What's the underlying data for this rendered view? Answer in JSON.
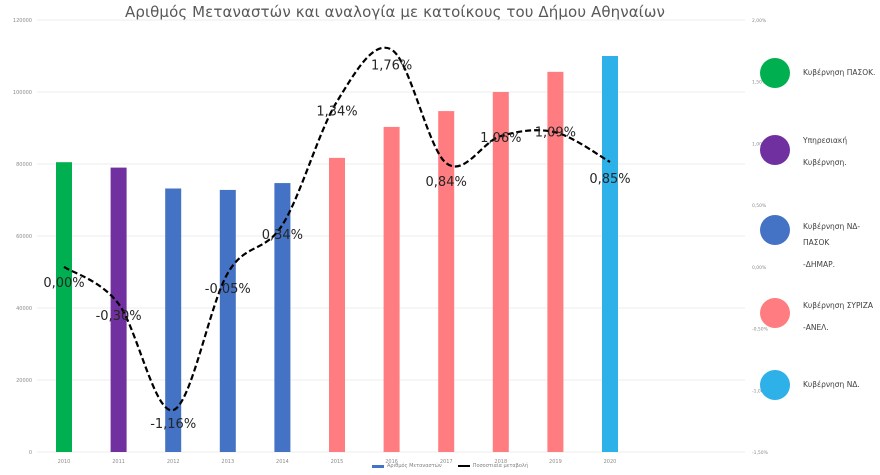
{
  "chart_data": {
    "type": "bar",
    "title": "Αριθμός Μεταναστών και αναλογία με κατοίκους του Δήμου Αθηναίων",
    "categories": [
      "2010",
      "2011",
      "2012",
      "2013",
      "2014",
      "2015",
      "2016",
      "2017",
      "2018",
      "2019",
      "2020"
    ],
    "series": [
      {
        "name": "Αριθμός Μεταναστών",
        "type": "bar",
        "axis": "left",
        "values": [
          80500,
          79000,
          73200,
          72800,
          74700,
          81700,
          90300,
          94700,
          100000,
          105600,
          110000
        ],
        "colors": [
          "#00b050",
          "#7030a0",
          "#4472c4",
          "#4472c4",
          "#4472c4",
          "#ff7c80",
          "#ff7c80",
          "#ff7c80",
          "#ff7c80",
          "#ff7c80",
          "#2eb0e8"
        ]
      },
      {
        "name": "Ποσοστιαία μεταβολή",
        "type": "line",
        "style": "dashed-smooth",
        "axis": "right",
        "values": [
          0.0,
          -0.3,
          -1.16,
          -0.05,
          0.34,
          1.34,
          1.76,
          0.84,
          1.06,
          1.09,
          0.85
        ],
        "labels": [
          "0,00%",
          "-0,30%",
          "-1,16%",
          "-0,05%",
          "0,34%",
          "1,34%",
          "1,76%",
          "0,84%",
          "1,06%",
          "1,09%",
          "0,85%"
        ]
      }
    ],
    "left_axis": {
      "ylim": [
        0,
        120000
      ],
      "ticks": [
        "0",
        "20000",
        "40000",
        "60000",
        "80000",
        "100000",
        "120000"
      ]
    },
    "right_axis": {
      "ylim": [
        -1.5,
        2.0
      ],
      "ticks": [
        "-1,50%",
        "-1,00%",
        "-0,50%",
        "0,00%",
        "0,50%",
        "1,00%",
        "1,50%",
        "2,00%"
      ]
    },
    "xlabel": "",
    "ylabel": "",
    "grid": true,
    "legend": {
      "position": "bottom",
      "entries": [
        "Αριθμός Μεταναστών",
        "Ποσοστιαία μεταβολή"
      ]
    },
    "annotation_legend": [
      {
        "color": "#00b050",
        "label": "Κυβέρνηση ΠΑΣΟΚ."
      },
      {
        "color": "#7030a0",
        "label": "Υπηρεσιακή Κυβέρνηση."
      },
      {
        "color": "#4472c4",
        "label": "Κυβέρνηση ΝΔ-ΠΑΣΟΚ -ΔΗΜΑΡ."
      },
      {
        "color": "#ff7c80",
        "label": "Κυβέρνηση ΣΥΡΙΖΑ -ΑΝΕΛ."
      },
      {
        "color": "#2eb0e8",
        "label": "Κυβέρνηση ΝΔ."
      }
    ]
  },
  "title": "Αριθμός Μεταναστών και αναλογία με κατοίκους του Δήμου Αθηναίων",
  "side_legend": [
    {
      "line1": "Κυβέρνηση ΠΑΣΟΚ.",
      "line2": "",
      "color": "#00b050"
    },
    {
      "line1": "Υπηρεσιακή",
      "line2": "Κυβέρνηση.",
      "color": "#7030a0"
    },
    {
      "line1": "Κυβέρνηση ΝΔ-ΠΑΣΟΚ",
      "line2": "-ΔΗΜΑΡ.",
      "color": "#4472c4"
    },
    {
      "line1": "Κυβέρνηση ΣΥΡΙΖΑ",
      "line2": "-ΑΝΕΛ.",
      "color": "#ff7c80"
    },
    {
      "line1": "Κυβέρνηση ΝΔ.",
      "line2": "",
      "color": "#2eb0e8"
    }
  ],
  "bottom_legend": {
    "bar_label": "Αριθμός Μεταναστών",
    "line_label": "Ποσοστιαία μεταβολή"
  }
}
